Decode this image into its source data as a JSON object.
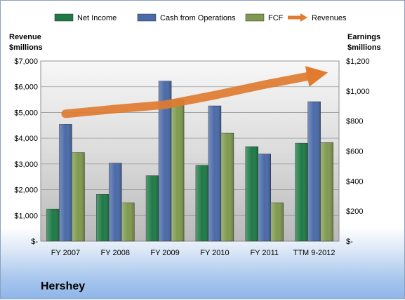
{
  "chart_data": {
    "type": "bar",
    "title": "Hershey",
    "categories": [
      "FY 2007",
      "FY 2008",
      "FY 2009",
      "FY 2010",
      "FY 2011",
      "TTM 9-2012"
    ],
    "series": [
      {
        "name": "Net Income",
        "axis": "right",
        "color": "#1e7a46",
        "values": [
          214,
          311,
          436,
          505,
          629,
          653
        ]
      },
      {
        "name": "Cash from Operations",
        "axis": "right",
        "color": "#4a6aa8",
        "values": [
          778,
          519,
          1066,
          901,
          580,
          929
        ]
      },
      {
        "name": "FCF",
        "axis": "right",
        "color": "#7f9a4f",
        "values": [
          590,
          255,
          944,
          719,
          255,
          656
        ]
      },
      {
        "name": "Revenues",
        "axis": "left",
        "type": "line-arrow",
        "color": "#e07b30",
        "values": [
          4947,
          5133,
          5299,
          5671,
          6081,
          6450
        ]
      }
    ],
    "ylabel": "Revenue\n$millions",
    "y2label": "Earnings\n$millions",
    "ylim": [
      0,
      7000
    ],
    "y2lim": [
      0,
      1200
    ],
    "yticks": [
      "$-",
      "$1,000",
      "$2,000",
      "$3,000",
      "$4,000",
      "$5,000",
      "$6,000",
      "$7,000"
    ],
    "y2ticks": [
      "$-",
      "$200",
      "$400",
      "$600",
      "$800",
      "$1,000",
      "$1,200"
    ],
    "legend_position": "top"
  }
}
